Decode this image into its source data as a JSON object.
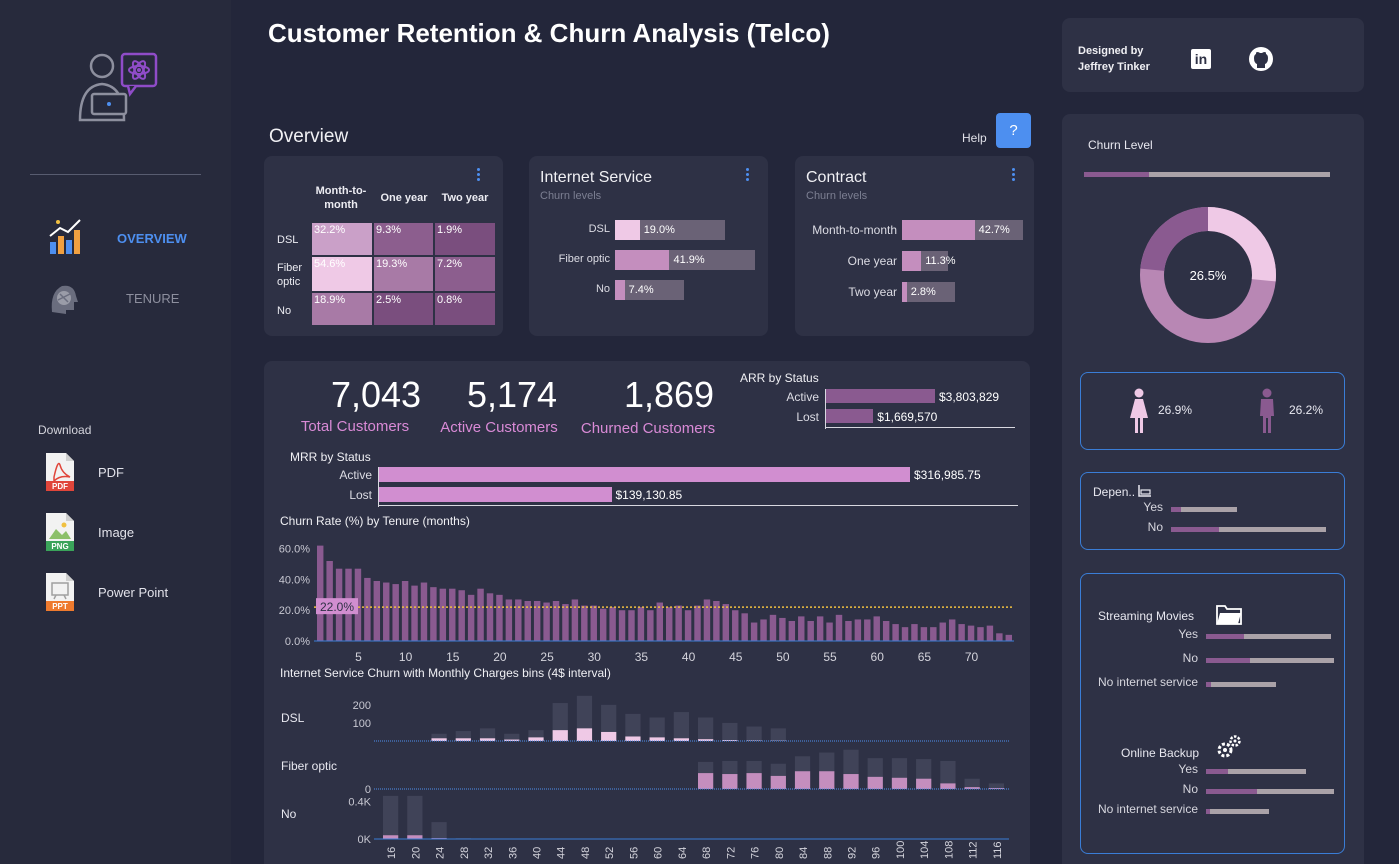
{
  "header": {
    "title": "Customer Retention & Churn Analysis (Telco)",
    "designed_by": "Designed by",
    "author": "Jeffrey Tinker",
    "linkedin_label": "in"
  },
  "sidebar": {
    "nav": [
      {
        "label": "OVERVIEW",
        "active": true
      },
      {
        "label": "TENURE",
        "active": false
      }
    ],
    "download_title": "Download",
    "downloads": [
      {
        "label": "PDF",
        "badge": "PDF",
        "color": "#e0453a"
      },
      {
        "label": "Image",
        "badge": "PNG",
        "color": "#3aa35a"
      },
      {
        "label": "Power Point",
        "badge": "PPT",
        "color": "#ee7a2e"
      }
    ]
  },
  "overview": {
    "title": "Overview",
    "help_label": "Help",
    "help_button": "?"
  },
  "heatmap": {
    "columns": [
      "Month-to-month",
      "One year",
      "Two year"
    ],
    "rows": [
      {
        "label": "DSL",
        "values": [
          "32.2%",
          "9.3%",
          "1.9%"
        ]
      },
      {
        "label": "Fiber optic",
        "values": [
          "54.6%",
          "19.3%",
          "7.2%"
        ]
      },
      {
        "label": "No",
        "values": [
          "18.9%",
          "2.5%",
          "0.8%"
        ]
      }
    ]
  },
  "internet_service": {
    "title": "Internet Service",
    "subtitle": "Churn levels",
    "items": [
      {
        "label": "DSL",
        "value": "19.0%",
        "pct": 19.0
      },
      {
        "label": "Fiber optic",
        "value": "41.9%",
        "pct": 41.9
      },
      {
        "label": "No",
        "value": "7.4%",
        "pct": 7.4
      }
    ]
  },
  "contract": {
    "title": "Contract",
    "subtitle": "Churn levels",
    "items": [
      {
        "label": "Month-to-month",
        "value": "42.7%",
        "pct": 42.7
      },
      {
        "label": "One year",
        "value": "11.3%",
        "pct": 11.3
      },
      {
        "label": "Two year",
        "value": "2.8%",
        "pct": 2.8
      }
    ]
  },
  "kpis": [
    {
      "value": "7,043",
      "label": "Total Customers"
    },
    {
      "value": "5,174",
      "label": "Active Customers"
    },
    {
      "value": "1,869",
      "label": "Churned Customers"
    }
  ],
  "arr": {
    "title": "ARR by Status",
    "items": [
      {
        "label": "Active",
        "value": "$3,803,829",
        "amount": 3803829
      },
      {
        "label": "Lost",
        "value": "$1,669,570",
        "amount": 1669570
      }
    ]
  },
  "mrr": {
    "title": "MRR by Status",
    "items": [
      {
        "label": "Active",
        "value": "$316,985.75",
        "amount": 316985.75
      },
      {
        "label": "Lost",
        "value": "$139,130.85",
        "amount": 139130.85
      }
    ]
  },
  "churn_level": {
    "title": "Churn Level",
    "center_label": "26.5%",
    "churn_fraction": 0.265
  },
  "gender": [
    {
      "value": "26.9%",
      "icon": "female-icon"
    },
    {
      "value": "26.2%",
      "icon": "male-icon"
    }
  ],
  "dependents": {
    "title": "Depen..",
    "items": [
      {
        "label": "Yes",
        "churn": 0.15
      },
      {
        "label": "No",
        "churn": 0.31
      }
    ]
  },
  "streaming_movies": {
    "title": "Streaming Movies",
    "items": [
      {
        "label": "Yes",
        "churn": 0.3
      },
      {
        "label": "No",
        "churn": 0.34
      },
      {
        "label": "No internet service",
        "churn": 0.07
      }
    ]
  },
  "online_backup": {
    "title": "Online Backup",
    "items": [
      {
        "label": "Yes",
        "churn": 0.22
      },
      {
        "label": "No",
        "churn": 0.4
      },
      {
        "label": "No internet service",
        "churn": 0.07
      }
    ]
  },
  "chart_data": [
    {
      "type": "bar",
      "title": "Churn Rate (%) by Tenure (months)",
      "xlabel": "",
      "ylabel": "",
      "x_ticks": [
        "5",
        "10",
        "15",
        "20",
        "25",
        "30",
        "35",
        "40",
        "45",
        "50",
        "55",
        "60",
        "65",
        "70"
      ],
      "y_ticks": [
        "0.0%",
        "20.0%",
        "40.0%",
        "60.0%"
      ],
      "ylim": [
        0,
        65
      ],
      "reference_line": {
        "label": "22.0%",
        "value": 22.0
      },
      "x_start": 1,
      "values": [
        62,
        52,
        47,
        47,
        47,
        41,
        39,
        38,
        37,
        39,
        36,
        38,
        35,
        34,
        34,
        33,
        30,
        34,
        31,
        30,
        27,
        27,
        26,
        26,
        25,
        26,
        24,
        27,
        23,
        23,
        21,
        22,
        20,
        20,
        22,
        20,
        25,
        22,
        23,
        20,
        23,
        27,
        26,
        24,
        20,
        18,
        12,
        14,
        17,
        15,
        13,
        16,
        13,
        16,
        12,
        17,
        13,
        14,
        14,
        16,
        13,
        11,
        9,
        11,
        9,
        9,
        12,
        14,
        11,
        10,
        9,
        10,
        5,
        4
      ]
    },
    {
      "type": "bar",
      "title": "Internet Service Churn with Monthly Charges bins (4$ interval)",
      "categories": [
        "16",
        "20",
        "24",
        "28",
        "32",
        "36",
        "40",
        "44",
        "48",
        "52",
        "56",
        "60",
        "64",
        "68",
        "72",
        "76",
        "80",
        "84",
        "88",
        "92",
        "96",
        "100",
        "104",
        "108",
        "112",
        "116"
      ],
      "panels": [
        {
          "name": "DSL",
          "y_ticks": [
            "100",
            "200"
          ],
          "ymax": 260,
          "total": [
            0,
            0,
            40,
            55,
            70,
            40,
            60,
            210,
            250,
            200,
            150,
            130,
            160,
            130,
            100,
            80,
            70,
            0,
            0,
            0,
            0,
            0,
            0,
            0,
            0,
            0
          ],
          "churned": [
            0,
            0,
            15,
            15,
            15,
            8,
            20,
            60,
            70,
            50,
            25,
            20,
            15,
            10,
            5,
            3,
            2,
            0,
            0,
            0,
            0,
            0,
            0,
            0,
            0,
            0
          ]
        },
        {
          "name": "Fiber optic",
          "y_ticks": [
            "0"
          ],
          "ymax": 230,
          "total": [
            0,
            0,
            0,
            0,
            0,
            0,
            0,
            0,
            0,
            0,
            0,
            0,
            0,
            145,
            150,
            150,
            135,
            175,
            195,
            210,
            165,
            165,
            160,
            150,
            55,
            30
          ],
          "churned": [
            0,
            0,
            0,
            0,
            0,
            0,
            0,
            0,
            0,
            0,
            0,
            0,
            0,
            85,
            80,
            85,
            70,
            95,
            95,
            80,
            65,
            60,
            55,
            30,
            10,
            5
          ]
        },
        {
          "name": "No",
          "y_ticks": [
            "0K",
            "0.4K"
          ],
          "ymax": 0.48,
          "total": [
            0.46,
            0.46,
            0.18,
            0.01,
            0,
            0,
            0,
            0,
            0,
            0,
            0,
            0,
            0,
            0,
            0,
            0,
            0,
            0,
            0,
            0,
            0,
            0,
            0,
            0,
            0,
            0
          ],
          "churned": [
            0.04,
            0.04,
            0.01,
            0,
            0,
            0,
            0,
            0,
            0,
            0,
            0,
            0,
            0,
            0,
            0,
            0,
            0,
            0,
            0,
            0,
            0,
            0,
            0,
            0,
            0,
            0
          ]
        }
      ]
    }
  ],
  "colors": {
    "bg": "#23263a",
    "card": "#2e3145",
    "accent": "#4d8ff0",
    "kpi_label": "#d98ad6",
    "bar_purple": "#8a5a90",
    "bar_pink": "#d18ed0",
    "light_pink": "#efc9e6"
  }
}
